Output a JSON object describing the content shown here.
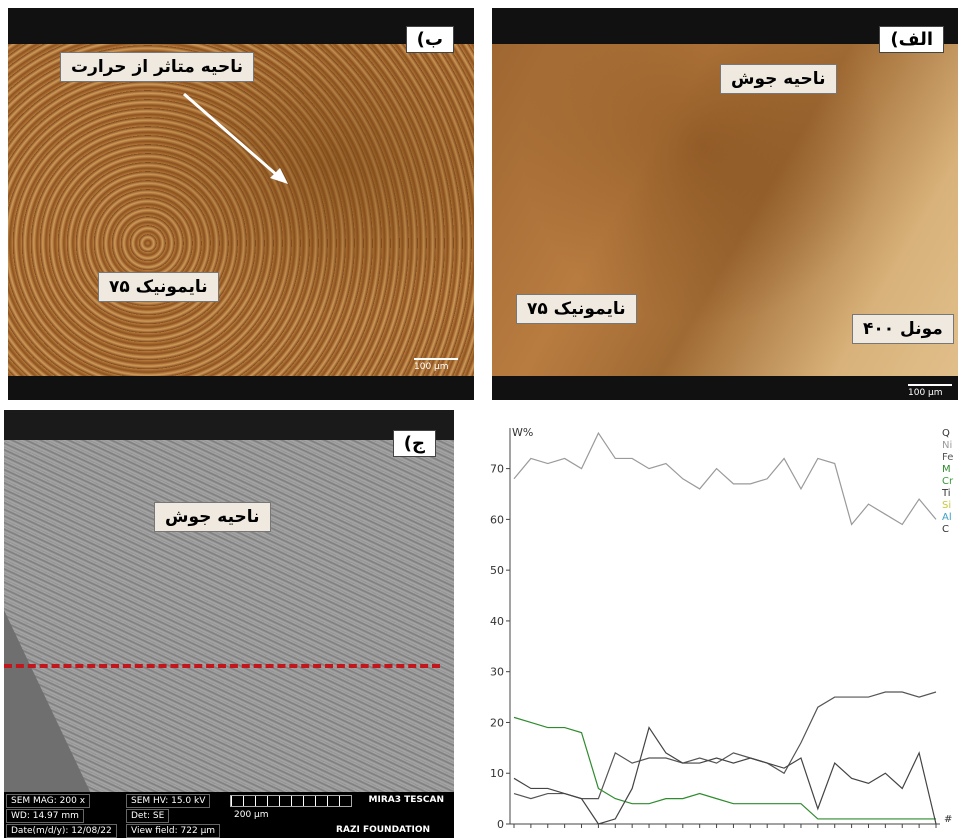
{
  "panels": {
    "b": {
      "letter": "ب)",
      "label_haz": "ناحیه متاثر از حرارت",
      "label_nimonic": "نایمونیک ۷۵",
      "scale": "100 μm"
    },
    "a": {
      "letter": "الف)",
      "label_weld": "ناحیه جوش",
      "label_nimonic": "نایمونیک ۷۵",
      "label_monel": "مونل ۴۰۰",
      "scale": "100 μm"
    },
    "c": {
      "letter": "ج)",
      "label_weld": "ناحیه جوش",
      "sem": {
        "mag": "SEM MAG: 200 x",
        "hv": "SEM HV: 15.0 kV",
        "wd": "WD: 14.97 mm",
        "det": "Det: SE",
        "date": "Date(m/d/y): 12/08/22",
        "field": "View field: 722 μm",
        "scale": "200 μm",
        "brand": "MIRA3 TESCAN",
        "org": "RAZI FOUNDATION"
      }
    }
  },
  "colors": {
    "red_line": "#c0161c",
    "series_ni": "#9a9a9a",
    "series_fe": "#555555",
    "series_mn": "#2e8b2e",
    "series_cr": "#444444"
  },
  "chart_data": {
    "type": "line",
    "ylabel": "W%",
    "xlabel": "#",
    "ylim": [
      0,
      78
    ],
    "yticks": [
      0,
      10,
      20,
      30,
      40,
      50,
      60,
      70
    ],
    "legend_entries": [
      "Q",
      "Ni",
      "Fe",
      "M",
      "Cr",
      "Ti",
      "Si",
      "Al",
      "C"
    ],
    "legend_colors": [
      "#333333",
      "#9a9a9a",
      "#555555",
      "#2e8b2e",
      "#3a9a3a",
      "#333333",
      "#c8c83a",
      "#3aa0c8",
      "#333333"
    ],
    "x": [
      1,
      2,
      3,
      4,
      5,
      6,
      7,
      8,
      9,
      10,
      11,
      12,
      13,
      14,
      15,
      16,
      17,
      18,
      19,
      20,
      21,
      22,
      23,
      24,
      25,
      26
    ],
    "series": [
      {
        "name": "Ni",
        "color": "#9a9a9a",
        "values": [
          68,
          72,
          71,
          72,
          70,
          77,
          72,
          72,
          70,
          71,
          68,
          66,
          70,
          67,
          67,
          68,
          72,
          66,
          72,
          71,
          59,
          63,
          61,
          59,
          64,
          60
        ]
      },
      {
        "name": "Fe",
        "color": "#555555",
        "values": [
          6,
          5,
          6,
          6,
          5,
          5,
          14,
          12,
          13,
          13,
          12,
          13,
          12,
          14,
          13,
          12,
          10,
          16,
          23,
          25,
          25,
          25,
          26,
          26,
          25,
          26
        ]
      },
      {
        "name": "M",
        "color": "#2e8b2e",
        "values": [
          21,
          20,
          19,
          19,
          18,
          7,
          5,
          4,
          4,
          5,
          5,
          6,
          5,
          4,
          4,
          4,
          4,
          4,
          1,
          1,
          1,
          1,
          1,
          1,
          1,
          1
        ]
      },
      {
        "name": "Cr",
        "color": "#444444",
        "values": [
          9,
          7,
          7,
          6,
          5,
          0,
          1,
          7,
          19,
          14,
          12,
          12,
          13,
          12,
          13,
          12,
          11,
          13,
          3,
          12,
          9,
          8,
          10,
          7,
          14,
          0
        ]
      }
    ]
  }
}
